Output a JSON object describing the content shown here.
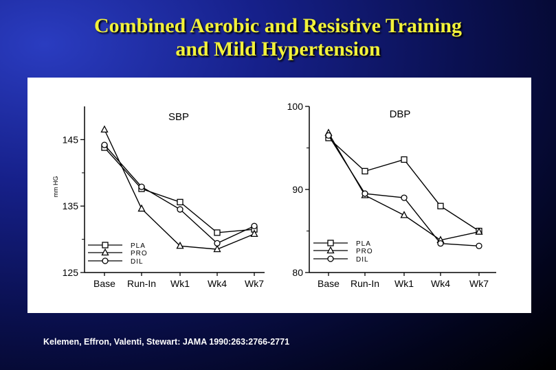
{
  "slide": {
    "title_line1": "Combined Aerobic and Resistive Training",
    "title_line2": "and Mild Hypertension",
    "citation": "Kelemen, Effron, Valenti, Stewart: JAMA  1990:263:2766-2771"
  },
  "chart_data": [
    {
      "type": "line",
      "title": "SBP",
      "ylabel": "mm HG",
      "xlabel": "",
      "categories": [
        "Base",
        "Run-In",
        "Wk1",
        "Wk4",
        "Wk7"
      ],
      "ylim": [
        125,
        150
      ],
      "yticks": [
        125,
        135,
        145
      ],
      "series": [
        {
          "name": "PLA",
          "marker": "square",
          "values": [
            143.8,
            137.6,
            135.6,
            131.0,
            131.5
          ]
        },
        {
          "name": "PRO",
          "marker": "triangle",
          "values": [
            146.5,
            134.6,
            129.0,
            128.5,
            130.8
          ]
        },
        {
          "name": "DIL",
          "marker": "circle",
          "values": [
            144.2,
            137.9,
            134.5,
            129.4,
            132.0
          ]
        }
      ],
      "legend": "bottom-left",
      "grid": false
    },
    {
      "type": "line",
      "title": "DBP",
      "ylabel": "",
      "xlabel": "",
      "categories": [
        "Base",
        "Run-In",
        "Wk1",
        "Wk4",
        "Wk7"
      ],
      "ylim": [
        80,
        100
      ],
      "yticks": [
        80,
        90,
        100
      ],
      "series": [
        {
          "name": "PLA",
          "marker": "square",
          "values": [
            96.2,
            92.2,
            93.6,
            88.0,
            85.0
          ]
        },
        {
          "name": "PRO",
          "marker": "triangle",
          "values": [
            96.8,
            89.3,
            86.9,
            83.9,
            84.9
          ]
        },
        {
          "name": "DIL",
          "marker": "circle",
          "values": [
            96.5,
            89.5,
            89.0,
            83.5,
            83.2
          ]
        }
      ],
      "legend": "bottom-left",
      "grid": false
    }
  ]
}
